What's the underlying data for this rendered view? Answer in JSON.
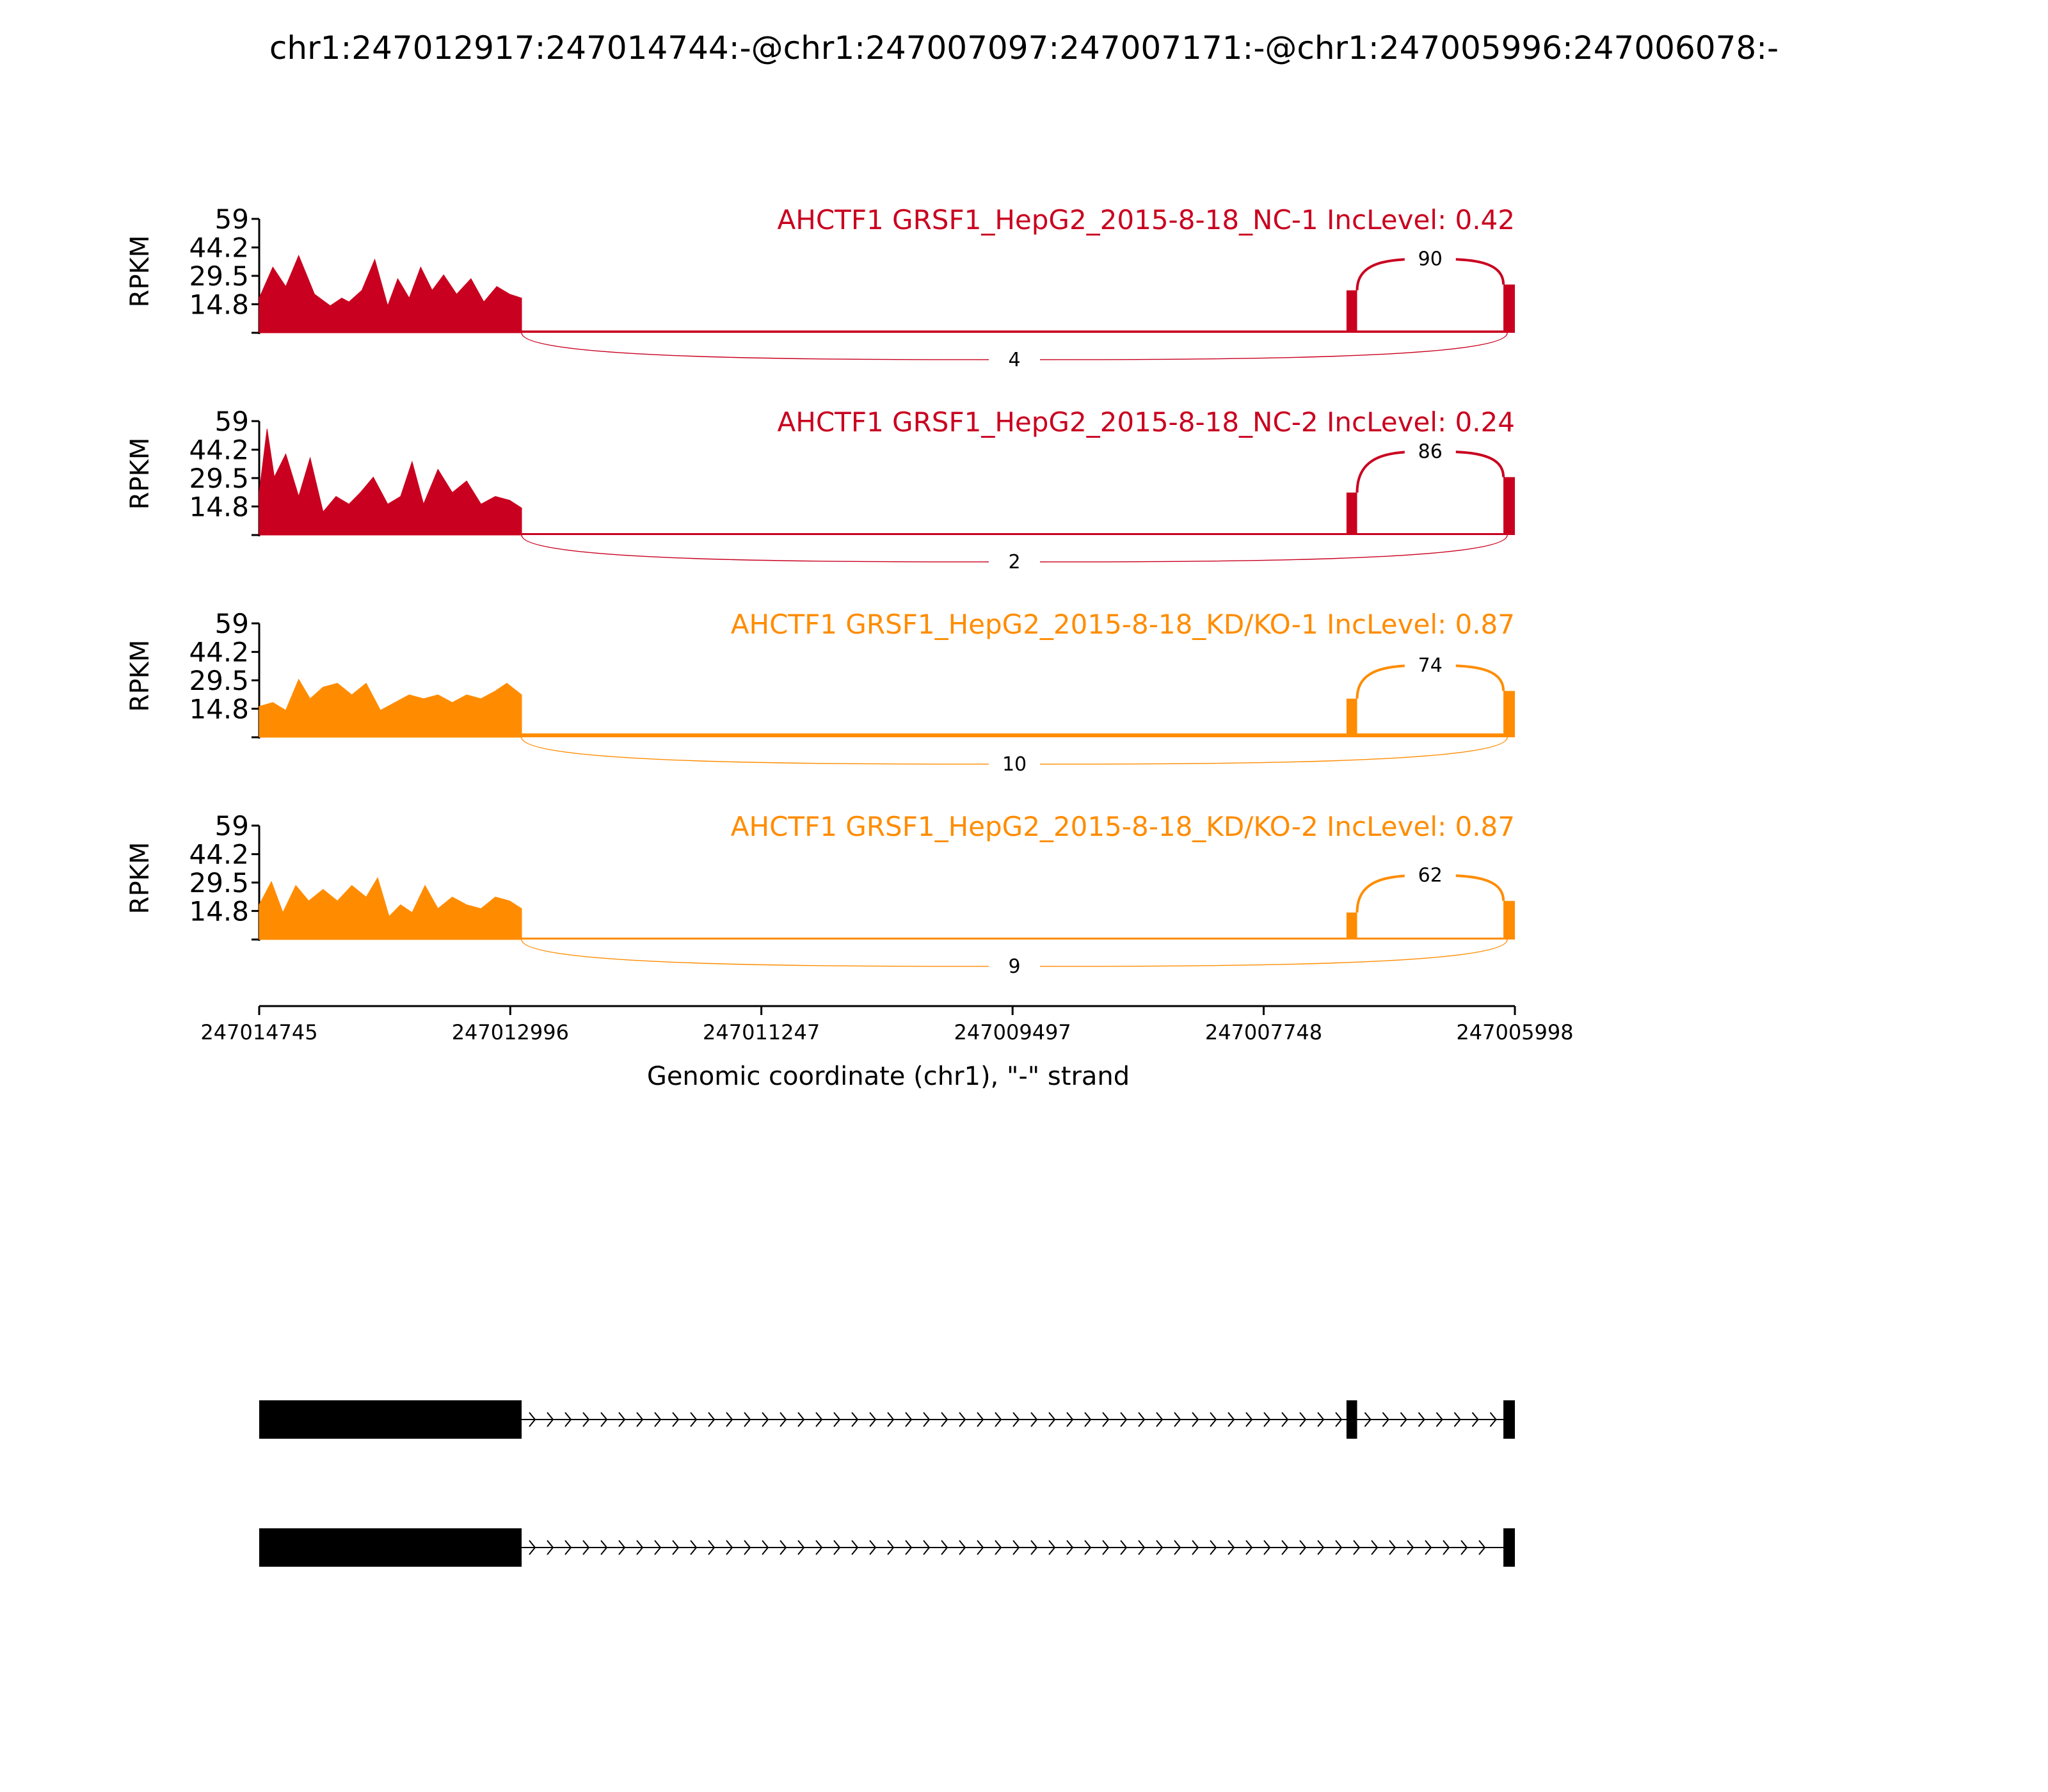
{
  "title": "chr1:247012917:247014744:-@chr1:247007097:247007171:-@chr1:247005996:247006078:-",
  "chart_data": {
    "type": "area",
    "title": "chr1:247012917:247014744:-@chr1:247007097:247007171:-@chr1:247005996:247006078:-",
    "xlabel": "Genomic coordinate (chr1), \"-\" strand",
    "ylabel": "RPKM",
    "xlim": [
      247014745,
      247005998
    ],
    "x_reversed": true,
    "ylim": [
      0,
      59
    ],
    "yticks": [
      "59",
      "44.2",
      "29.5",
      "14.8"
    ],
    "ytick_values": [
      59,
      44.2,
      29.5,
      14.8
    ],
    "xticks": [
      "247014745",
      "247012996",
      "247011247",
      "247009497",
      "247007748",
      "247005998"
    ],
    "xtick_values": [
      247014745,
      247012996,
      247011247,
      247009497,
      247007748,
      247005998
    ],
    "exons": [
      {
        "start": 247014745,
        "end": 247012917
      },
      {
        "start": 247007171,
        "end": 247007097
      },
      {
        "start": 247006078,
        "end": 247005998
      }
    ],
    "tracks": [
      {
        "label": "AHCTF1 GRSF1_HepG2_2015-8-18_NC-1 IncLevel: 0.42",
        "color": "#c9001f",
        "junction_upper": "90",
        "junction_lower": "4",
        "coverage_x": [
          247014745,
          247014650,
          247014560,
          247014470,
          247014360,
          247014250,
          247014170,
          247014120,
          247014030,
          247013940,
          247013850,
          247013780,
          247013700,
          247013620,
          247013540,
          247013460,
          247013370,
          247013270,
          247013180,
          247013090,
          247013000,
          247012917
        ],
        "coverage_y": [
          18,
          34,
          24,
          40,
          20,
          14,
          18,
          16,
          22,
          38,
          14,
          28,
          18,
          34,
          22,
          30,
          20,
          28,
          16,
          24,
          20,
          18
        ],
        "exon2_level": 22,
        "exon3_level": 25,
        "intron_level": 1.2
      },
      {
        "label": "AHCTF1 GRSF1_HepG2_2015-8-18_NC-2 IncLevel: 0.24",
        "color": "#c9001f",
        "junction_upper": "86",
        "junction_lower": "2",
        "coverage_x": [
          247014745,
          247014690,
          247014640,
          247014560,
          247014470,
          247014390,
          247014300,
          247014210,
          247014120,
          247014040,
          247013950,
          247013850,
          247013760,
          247013680,
          247013600,
          247013500,
          247013400,
          247013300,
          247013200,
          247013100,
          247013000,
          247012917
        ],
        "coverage_y": [
          22,
          55,
          30,
          42,
          20,
          40,
          12,
          20,
          16,
          22,
          30,
          16,
          20,
          38,
          16,
          34,
          22,
          28,
          16,
          20,
          18,
          14
        ],
        "exon2_level": 22,
        "exon3_level": 30,
        "intron_level": 1.0
      },
      {
        "label": "AHCTF1 GRSF1_HepG2_2015-8-18_KD/KO-1 IncLevel: 0.87",
        "color": "#ff8c00",
        "junction_upper": "74",
        "junction_lower": "10",
        "coverage_x": [
          247014745,
          247014650,
          247014560,
          247014470,
          247014390,
          247014300,
          247014200,
          247014100,
          247014000,
          247013900,
          247013800,
          247013700,
          247013600,
          247013500,
          247013400,
          247013300,
          247013200,
          247013100,
          247013020,
          247012917
        ],
        "coverage_y": [
          16,
          18,
          14,
          30,
          20,
          26,
          28,
          22,
          28,
          14,
          18,
          22,
          20,
          22,
          18,
          22,
          20,
          24,
          28,
          22
        ],
        "exon2_level": 20,
        "exon3_level": 24,
        "intron_level": 2.0
      },
      {
        "label": "AHCTF1 GRSF1_HepG2_2015-8-18_KD/KO-2 IncLevel: 0.87",
        "color": "#ff8c00",
        "junction_upper": "62",
        "junction_lower": "9",
        "coverage_x": [
          247014745,
          247014660,
          247014580,
          247014490,
          247014400,
          247014300,
          247014200,
          247014100,
          247014000,
          247013920,
          247013840,
          247013760,
          247013680,
          247013590,
          247013500,
          247013400,
          247013300,
          247013200,
          247013100,
          247013000,
          247012917
        ],
        "coverage_y": [
          18,
          30,
          14,
          28,
          20,
          26,
          20,
          28,
          22,
          32,
          12,
          18,
          14,
          28,
          16,
          22,
          18,
          16,
          22,
          20,
          16
        ],
        "exon2_level": 14,
        "exon3_level": 20,
        "intron_level": 1.0
      }
    ],
    "isoforms": [
      {
        "exons": [
          [
            247014745,
            247012917
          ],
          [
            247007171,
            247007097
          ],
          [
            247006078,
            247005998
          ]
        ]
      },
      {
        "exons": [
          [
            247014745,
            247012917
          ],
          [
            247006078,
            247005998
          ]
        ]
      }
    ]
  }
}
